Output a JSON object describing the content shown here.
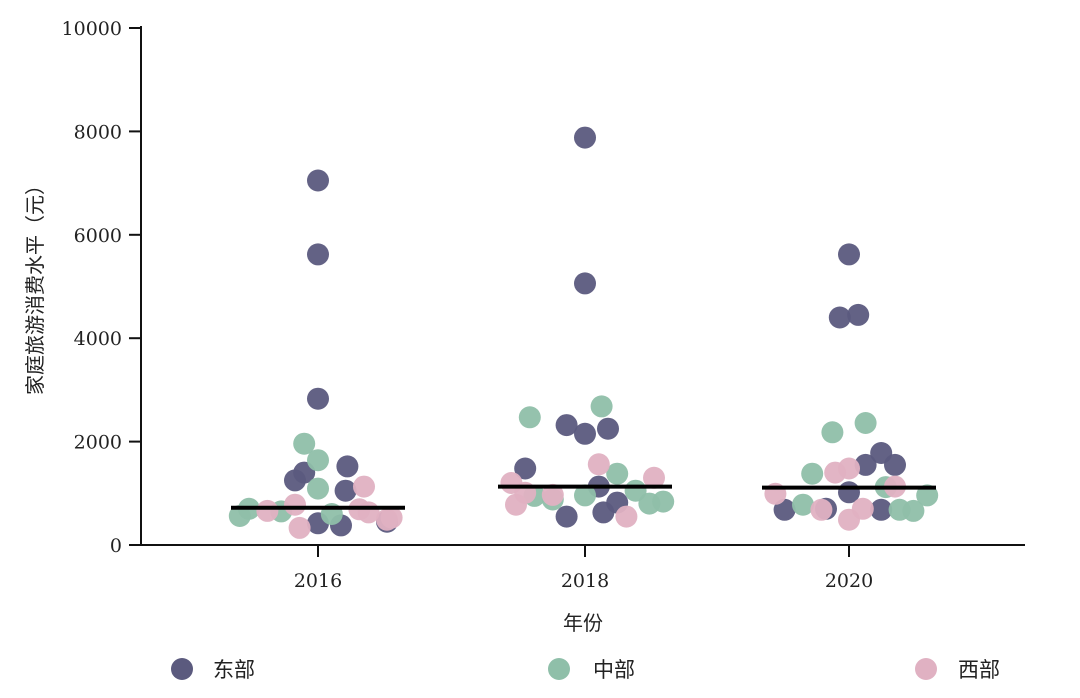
{
  "chart_data": {
    "type": "scatter",
    "title": "",
    "xlabel": "年份",
    "ylabel": "家庭旅游消费水平（元）",
    "ylim": [
      0,
      10000
    ],
    "yticks": [
      0,
      2000,
      4000,
      6000,
      8000,
      10000
    ],
    "categories": [
      "2016",
      "2018",
      "2020"
    ],
    "legend_position": "bottom",
    "series": [
      {
        "name": "东部",
        "color": "#5b5a7e",
        "points": [
          {
            "x": "2016",
            "offset": -0.25,
            "y": 1250
          },
          {
            "x": "2016",
            "offset": -0.15,
            "y": 1400
          },
          {
            "x": "2016",
            "offset": 0.0,
            "y": 7050
          },
          {
            "x": "2016",
            "offset": 0.0,
            "y": 5620
          },
          {
            "x": "2016",
            "offset": 0.0,
            "y": 2830
          },
          {
            "x": "2016",
            "offset": 0.0,
            "y": 420
          },
          {
            "x": "2016",
            "offset": 0.25,
            "y": 380
          },
          {
            "x": "2016",
            "offset": 0.3,
            "y": 1050
          },
          {
            "x": "2016",
            "offset": 0.32,
            "y": 1520
          },
          {
            "x": "2016",
            "offset": 0.75,
            "y": 450
          },
          {
            "x": "2018",
            "offset": -0.65,
            "y": 1480
          },
          {
            "x": "2018",
            "offset": -0.2,
            "y": 550
          },
          {
            "x": "2018",
            "offset": -0.2,
            "y": 2320
          },
          {
            "x": "2018",
            "offset": 0.0,
            "y": 7880
          },
          {
            "x": "2018",
            "offset": 0.0,
            "y": 5060
          },
          {
            "x": "2018",
            "offset": 0.0,
            "y": 2150
          },
          {
            "x": "2018",
            "offset": 0.15,
            "y": 1130
          },
          {
            "x": "2018",
            "offset": 0.2,
            "y": 630
          },
          {
            "x": "2018",
            "offset": 0.25,
            "y": 2250
          },
          {
            "x": "2018",
            "offset": 0.35,
            "y": 820
          },
          {
            "x": "2020",
            "offset": -0.7,
            "y": 680
          },
          {
            "x": "2020",
            "offset": -0.25,
            "y": 700
          },
          {
            "x": "2020",
            "offset": 0.0,
            "y": 5620
          },
          {
            "x": "2020",
            "offset": 0.0,
            "y": 1020
          },
          {
            "x": "2020",
            "offset": -0.1,
            "y": 4400
          },
          {
            "x": "2020",
            "offset": 0.1,
            "y": 4450
          },
          {
            "x": "2020",
            "offset": 0.18,
            "y": 1550
          },
          {
            "x": "2020",
            "offset": 0.35,
            "y": 680
          },
          {
            "x": "2020",
            "offset": 0.35,
            "y": 1780
          },
          {
            "x": "2020",
            "offset": 0.5,
            "y": 1550
          }
        ]
      },
      {
        "name": "中部",
        "color": "#8fbfa9",
        "points": [
          {
            "x": "2016",
            "offset": -0.85,
            "y": 560
          },
          {
            "x": "2016",
            "offset": -0.75,
            "y": 700
          },
          {
            "x": "2016",
            "offset": -0.4,
            "y": 650
          },
          {
            "x": "2016",
            "offset": -0.15,
            "y": 1960
          },
          {
            "x": "2016",
            "offset": 0.0,
            "y": 1640
          },
          {
            "x": "2016",
            "offset": 0.0,
            "y": 1090
          },
          {
            "x": "2016",
            "offset": 0.15,
            "y": 600
          },
          {
            "x": "2018",
            "offset": -0.6,
            "y": 2470
          },
          {
            "x": "2018",
            "offset": -0.55,
            "y": 950
          },
          {
            "x": "2018",
            "offset": -0.35,
            "y": 880
          },
          {
            "x": "2018",
            "offset": 0.0,
            "y": 960
          },
          {
            "x": "2018",
            "offset": 0.18,
            "y": 2680
          },
          {
            "x": "2018",
            "offset": 0.35,
            "y": 1380
          },
          {
            "x": "2018",
            "offset": 0.55,
            "y": 1050
          },
          {
            "x": "2018",
            "offset": 0.7,
            "y": 800
          },
          {
            "x": "2018",
            "offset": 0.85,
            "y": 840
          },
          {
            "x": "2020",
            "offset": -0.5,
            "y": 780
          },
          {
            "x": "2020",
            "offset": -0.4,
            "y": 1380
          },
          {
            "x": "2020",
            "offset": -0.18,
            "y": 2180
          },
          {
            "x": "2020",
            "offset": 0.18,
            "y": 2360
          },
          {
            "x": "2020",
            "offset": 0.4,
            "y": 1120
          },
          {
            "x": "2020",
            "offset": 0.55,
            "y": 680
          },
          {
            "x": "2020",
            "offset": 0.7,
            "y": 660
          },
          {
            "x": "2020",
            "offset": 0.85,
            "y": 960
          }
        ]
      },
      {
        "name": "西部",
        "color": "#e0b1c2",
        "points": [
          {
            "x": "2016",
            "offset": -0.55,
            "y": 660
          },
          {
            "x": "2016",
            "offset": -0.25,
            "y": 780
          },
          {
            "x": "2016",
            "offset": -0.2,
            "y": 330
          },
          {
            "x": "2016",
            "offset": 0.5,
            "y": 1130
          },
          {
            "x": "2016",
            "offset": 0.45,
            "y": 690
          },
          {
            "x": "2016",
            "offset": 0.55,
            "y": 630
          },
          {
            "x": "2016",
            "offset": 0.75,
            "y": 490
          },
          {
            "x": "2016",
            "offset": 0.8,
            "y": 530
          },
          {
            "x": "2018",
            "offset": -0.8,
            "y": 1200
          },
          {
            "x": "2018",
            "offset": -0.75,
            "y": 780
          },
          {
            "x": "2018",
            "offset": -0.65,
            "y": 1010
          },
          {
            "x": "2018",
            "offset": -0.35,
            "y": 970
          },
          {
            "x": "2018",
            "offset": 0.15,
            "y": 1560
          },
          {
            "x": "2018",
            "offset": 0.45,
            "y": 550
          },
          {
            "x": "2018",
            "offset": 0.75,
            "y": 1300
          },
          {
            "x": "2020",
            "offset": -0.8,
            "y": 990
          },
          {
            "x": "2020",
            "offset": -0.3,
            "y": 680
          },
          {
            "x": "2020",
            "offset": -0.15,
            "y": 1400
          },
          {
            "x": "2020",
            "offset": 0.0,
            "y": 1480
          },
          {
            "x": "2020",
            "offset": 0.0,
            "y": 490
          },
          {
            "x": "2020",
            "offset": 0.15,
            "y": 700
          },
          {
            "x": "2020",
            "offset": 0.5,
            "y": 1130
          }
        ]
      }
    ],
    "medians": [
      {
        "x": "2016",
        "y": 720
      },
      {
        "x": "2018",
        "y": 1130
      },
      {
        "x": "2020",
        "y": 1110
      }
    ]
  }
}
